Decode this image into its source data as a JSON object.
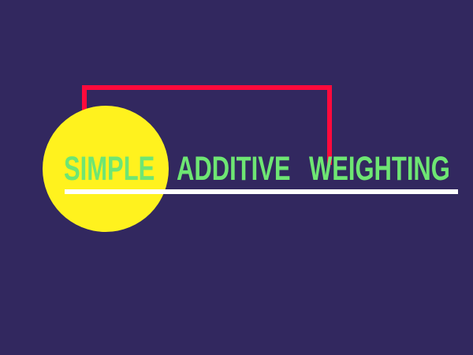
{
  "title": {
    "words": [
      "SIMPLE",
      "ADDITIVE",
      "WEIGHTING"
    ]
  },
  "colors": {
    "background": "#32285f",
    "circle": "#fff21e",
    "bracket": "#ff0a3c",
    "text": "#6ee673",
    "underline": "#ffffff"
  }
}
